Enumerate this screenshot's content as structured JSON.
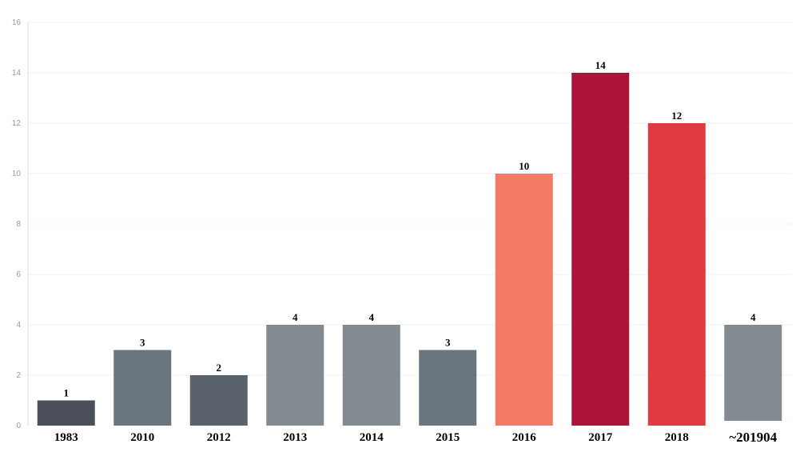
{
  "chart_data": {
    "type": "bar",
    "title": "",
    "xlabel": "",
    "ylabel": "",
    "categories": [
      "1983",
      "2010",
      "2012",
      "2013",
      "2014",
      "2015",
      "2016",
      "2017",
      "2018",
      "~201904"
    ],
    "values": [
      1,
      3,
      2,
      4,
      4,
      3,
      10,
      14,
      12,
      4
    ],
    "colors": [
      "#4a4f5b",
      "#6b757d",
      "#5a626c",
      "#838a90",
      "#838a90",
      "#6b757d",
      "#f47a65",
      "#ae1238",
      "#e0393f",
      "#838a90"
    ],
    "ylim": [
      0,
      16
    ],
    "yticks": [
      "0",
      "2",
      "4",
      "6",
      "8",
      "10",
      "12",
      "14",
      "16"
    ],
    "grid": true,
    "legend": "none"
  }
}
